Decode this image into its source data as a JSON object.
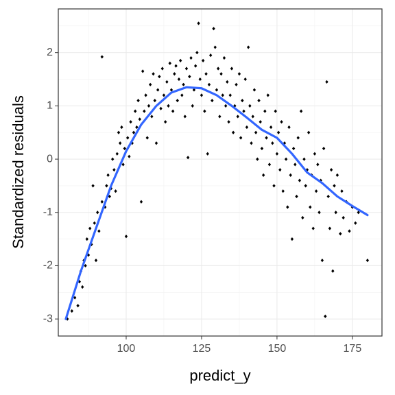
{
  "chart_data": {
    "type": "scatter",
    "x_label": "predict_y",
    "y_label": "Standardized residuals",
    "xlim": [
      77.5,
      184.8
    ],
    "ylim": [
      -3.32,
      2.82
    ],
    "xticks": [
      100,
      125,
      150,
      175
    ],
    "yticks": [
      -3,
      -2,
      -1,
      0,
      1,
      2
    ],
    "xminor": [
      87.5,
      112.5,
      137.5,
      162.5
    ],
    "yminor": [
      -2.5,
      -1.5,
      -0.5,
      0.5,
      1.5,
      2.5
    ],
    "grid": true,
    "color": "#000000",
    "x": [
      80.5,
      82,
      83,
      84,
      84.5,
      85,
      85.5,
      86,
      86.5,
      87,
      87.5,
      88,
      88.5,
      89,
      89.5,
      90,
      90.5,
      91,
      92,
      92,
      93,
      93.5,
      94,
      94.5,
      95,
      95.5,
      96,
      96.5,
      97,
      97.5,
      98,
      98.5,
      99,
      99.5,
      100,
      100.5,
      101,
      101.5,
      102,
      102.5,
      103,
      103.5,
      104,
      104.5,
      105,
      105.5,
      106,
      106.5,
      107,
      107.5,
      108,
      108.5,
      109,
      109.5,
      110,
      110.5,
      111,
      111.5,
      112,
      112.5,
      113,
      113.5,
      114,
      114.5,
      115,
      115.5,
      116,
      116.5,
      117,
      117.5,
      118,
      118.5,
      119,
      119.5,
      120,
      120.5,
      121,
      121.5,
      122,
      122.5,
      123,
      123.5,
      124,
      124.5,
      125,
      125.5,
      126,
      126.5,
      127,
      127.5,
      128,
      128.5,
      129,
      129.5,
      130,
      130.5,
      131,
      131.5,
      132,
      132.5,
      133,
      133.5,
      134,
      134.5,
      135,
      135.5,
      136,
      136.5,
      137,
      137.5,
      138,
      138.5,
      139,
      139.5,
      140,
      140.5,
      141,
      141.5,
      142,
      142.5,
      143,
      143.5,
      144,
      144.5,
      145,
      145.5,
      146,
      146.5,
      147,
      147.5,
      148,
      148.5,
      149,
      149.5,
      150,
      150.5,
      151,
      151.5,
      152,
      152.5,
      153,
      153.5,
      154,
      154.5,
      155,
      155.5,
      156,
      156.5,
      157,
      157.5,
      158,
      158.5,
      159,
      159.5,
      160,
      160.5,
      161,
      161.5,
      162,
      162.5,
      163,
      163.5,
      164,
      164.5,
      165,
      165.5,
      166,
      166.5,
      167,
      167.5,
      168,
      168.5,
      169,
      169.5,
      170,
      171,
      171.5,
      172,
      173,
      174,
      175,
      176,
      177,
      180
    ],
    "values": [
      -3.0,
      -2.85,
      -2.6,
      -2.75,
      -2.3,
      -2.1,
      -2.4,
      -1.9,
      -2.0,
      -1.5,
      -1.8,
      -1.3,
      -1.6,
      -0.5,
      -1.2,
      -1.9,
      -1.0,
      -1.35,
      1.92,
      -0.8,
      -0.9,
      -0.5,
      -0.3,
      -0.7,
      -0.55,
      0.0,
      -0.2,
      -0.6,
      0.1,
      0.5,
      0.3,
      0.6,
      -0.1,
      0.2,
      -1.45,
      0.4,
      0.05,
      0.7,
      0.3,
      0.5,
      0.9,
      0.6,
      1.1,
      0.75,
      -0.8,
      1.65,
      0.9,
      1.2,
      0.4,
      1.0,
      1.4,
      0.8,
      1.6,
      1.1,
      0.3,
      1.3,
      1.55,
      0.95,
      1.7,
      1.2,
      0.7,
      1.45,
      1.0,
      1.8,
      1.3,
      0.9,
      1.6,
      1.75,
      1.1,
      1.5,
      1.85,
      1.2,
      1.4,
      0.8,
      1.7,
      0.03,
      1.55,
      1.9,
      1.0,
      1.3,
      1.75,
      2.0,
      2.55,
      1.5,
      1.2,
      1.85,
      0.9,
      1.6,
      0.1,
      1.4,
      1.95,
      1.1,
      2.45,
      2.1,
      1.3,
      1.7,
      0.8,
      1.6,
      1.2,
      1.9,
      1.0,
      1.45,
      0.7,
      1.2,
      1.7,
      0.5,
      1.0,
      1.4,
      0.8,
      1.6,
      0.4,
      1.1,
      0.9,
      1.5,
      0.6,
      2.1,
      1.0,
      0.3,
      0.8,
      1.3,
      0.5,
      0.0,
      1.1,
      0.7,
      0.2,
      -0.3,
      0.9,
      0.4,
      1.2,
      -0.1,
      0.6,
      0.3,
      -0.5,
      0.9,
      0.1,
      0.5,
      -0.2,
      0.7,
      -0.6,
      0.3,
      0.0,
      -0.9,
      0.6,
      -0.3,
      -1.5,
      0.2,
      -0.1,
      -0.7,
      0.4,
      -0.4,
      0.9,
      -1.1,
      0.0,
      -0.5,
      -0.2,
      0.5,
      -0.9,
      -0.3,
      -1.3,
      0.1,
      -0.6,
      -0.1,
      -1.0,
      -0.4,
      -1.9,
      0.2,
      -2.95,
      1.45,
      -0.7,
      -1.3,
      -0.2,
      -2.1,
      -0.5,
      -1.0,
      -0.3,
      -1.4,
      -0.6,
      -1.1,
      -0.8,
      -1.35,
      -0.9,
      -1.2,
      -1.0,
      -1.9
    ],
    "smooth": {
      "color": "#3366ff",
      "x": [
        80,
        85,
        90,
        95,
        100,
        105,
        110,
        115,
        120,
        125,
        130,
        135,
        140,
        145,
        150,
        155,
        160,
        165,
        170,
        175,
        180
      ],
      "values": [
        -3.0,
        -2.1,
        -1.3,
        -0.5,
        0.15,
        0.65,
        1.0,
        1.25,
        1.35,
        1.33,
        1.2,
        1.0,
        0.78,
        0.55,
        0.4,
        0.1,
        -0.25,
        -0.45,
        -0.7,
        -0.88,
        -1.05
      ]
    }
  }
}
